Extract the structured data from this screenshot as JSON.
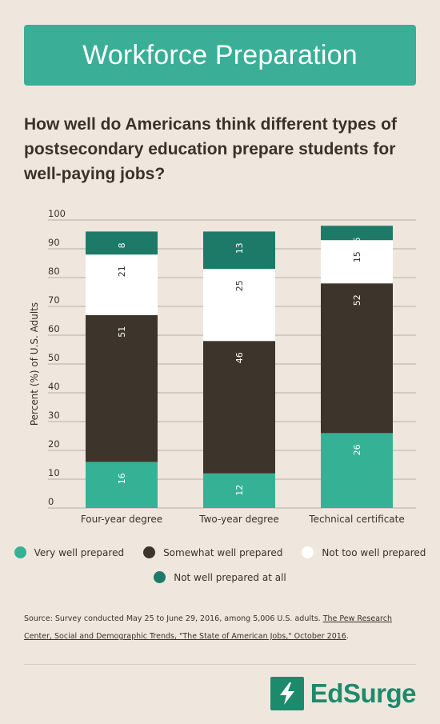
{
  "banner": {
    "title": "Workforce Preparation"
  },
  "question": "How well do Americans think different types of postsecondary education prepare students for well-paying jobs?",
  "chart_data": {
    "type": "bar",
    "stacked": true,
    "categories": [
      "Four-year degree",
      "Two-year degree",
      "Technical certificate"
    ],
    "series": [
      {
        "name": "Very well prepared",
        "values": [
          16,
          12,
          26
        ],
        "color": "#35b296"
      },
      {
        "name": "Somewhat well prepared",
        "values": [
          51,
          46,
          52
        ],
        "color": "#3d352b"
      },
      {
        "name": "Not too well prepared",
        "values": [
          21,
          25,
          15
        ],
        "color": "#ffffff"
      },
      {
        "name": "Not well prepared at all",
        "values": [
          8,
          13,
          5
        ],
        "color": "#1e7a68"
      }
    ],
    "ylabel": "Percent (%) of U.S. Adults",
    "ylim": [
      0,
      100
    ],
    "yticks": [
      0,
      10,
      20,
      30,
      40,
      50,
      60,
      70,
      80,
      90,
      100
    ],
    "grid": true,
    "legend_position": "bottom"
  },
  "legend": [
    {
      "label": "Very well prepared",
      "color": "#35b296"
    },
    {
      "label": "Somewhat well prepared",
      "color": "#3d352b"
    },
    {
      "label": "Not too well prepared",
      "color": "#ffffff"
    },
    {
      "label": "Not well prepared at all",
      "color": "#1e7a68"
    }
  ],
  "source": {
    "prefix": "Source: Survey conducted May 25 to June 29, 2016, among 5,006 U.S. adults. ",
    "link_text": "The Pew Research Center, Social and Demographic Trends, \"The State of American Jobs,\" October 2016",
    "suffix": "."
  },
  "brand": {
    "name": "EdSurge",
    "color": "#1e8a6c"
  }
}
